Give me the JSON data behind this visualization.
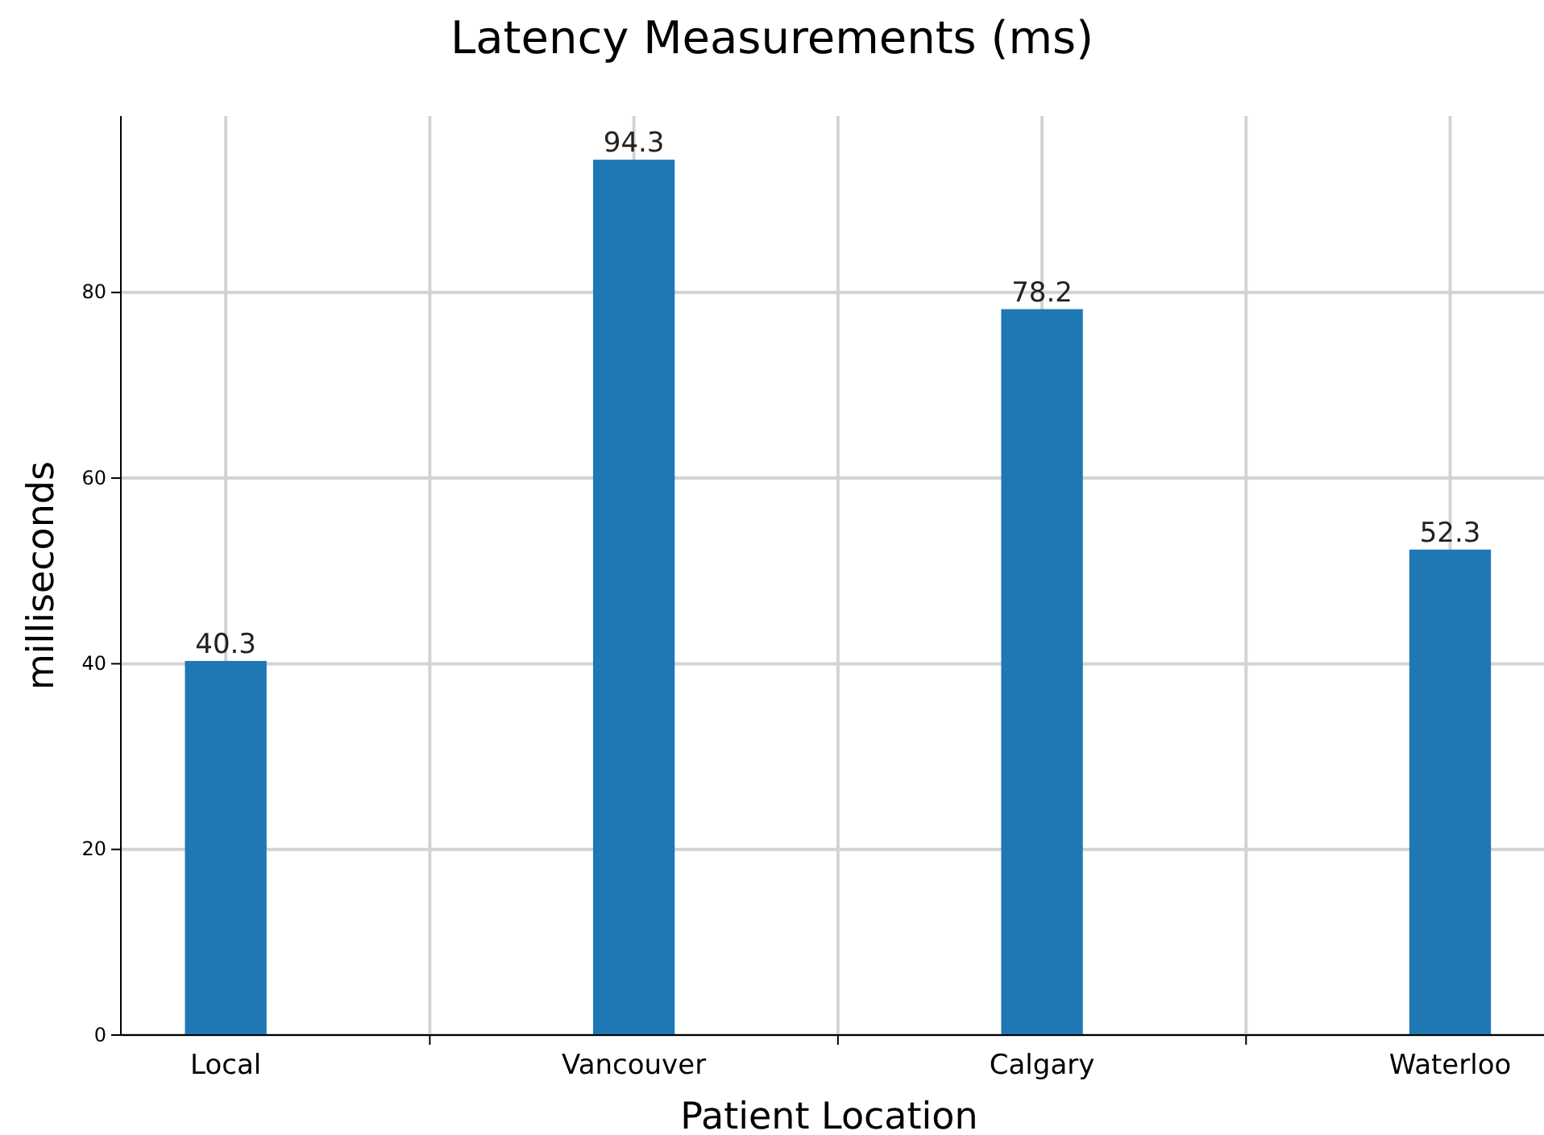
{
  "chart_data": {
    "type": "bar",
    "title": "Latency Measurements (ms)",
    "xlabel": "Patient Location",
    "ylabel": "milliseconds",
    "categories": [
      "Local",
      "Vancouver",
      "Calgary",
      "Waterloo"
    ],
    "series": [
      {
        "color": "#1f77b4",
        "values": [
          40.3,
          94.3,
          78.2,
          52.3
        ]
      }
    ],
    "data_labels": true,
    "ylim": [
      0,
      99
    ],
    "yticks": [
      0,
      20,
      40,
      60,
      80
    ],
    "grid": true
  }
}
